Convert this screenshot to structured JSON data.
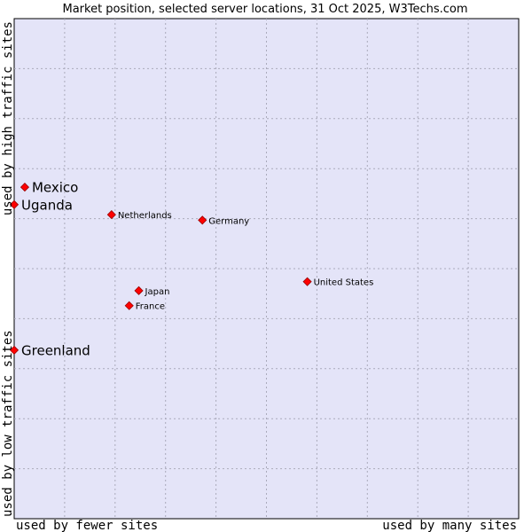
{
  "chart_data": {
    "type": "scatter",
    "title": "Market position, selected server locations, 31 Oct 2025, W3Techs.com",
    "xlabel_low": "used by fewer sites",
    "xlabel_high": "used by many sites",
    "ylabel_low": "used by low traffic sites",
    "ylabel_high": "used by high traffic sites",
    "xlim": [
      0,
      100
    ],
    "ylim": [
      0,
      100
    ],
    "grid": true,
    "colors": {
      "plot_bg": "#e4e4f8",
      "grid": "#aaaabb",
      "point": "#ff0000",
      "point_stroke": "#990000"
    },
    "points": [
      {
        "name": "Mexico",
        "x": 2.1,
        "y": 66.3,
        "emphasis": true
      },
      {
        "name": "Uganda",
        "x": 0.0,
        "y": 62.8,
        "emphasis": true
      },
      {
        "name": "Netherlands",
        "x": 19.3,
        "y": 60.8,
        "emphasis": false
      },
      {
        "name": "Germany",
        "x": 37.3,
        "y": 59.7,
        "emphasis": false
      },
      {
        "name": "United States",
        "x": 58.1,
        "y": 47.4,
        "emphasis": false
      },
      {
        "name": "Japan",
        "x": 24.7,
        "y": 45.6,
        "emphasis": false
      },
      {
        "name": "France",
        "x": 22.8,
        "y": 42.6,
        "emphasis": false
      },
      {
        "name": "Greenland",
        "x": 0.0,
        "y": 33.7,
        "emphasis": true
      }
    ]
  }
}
